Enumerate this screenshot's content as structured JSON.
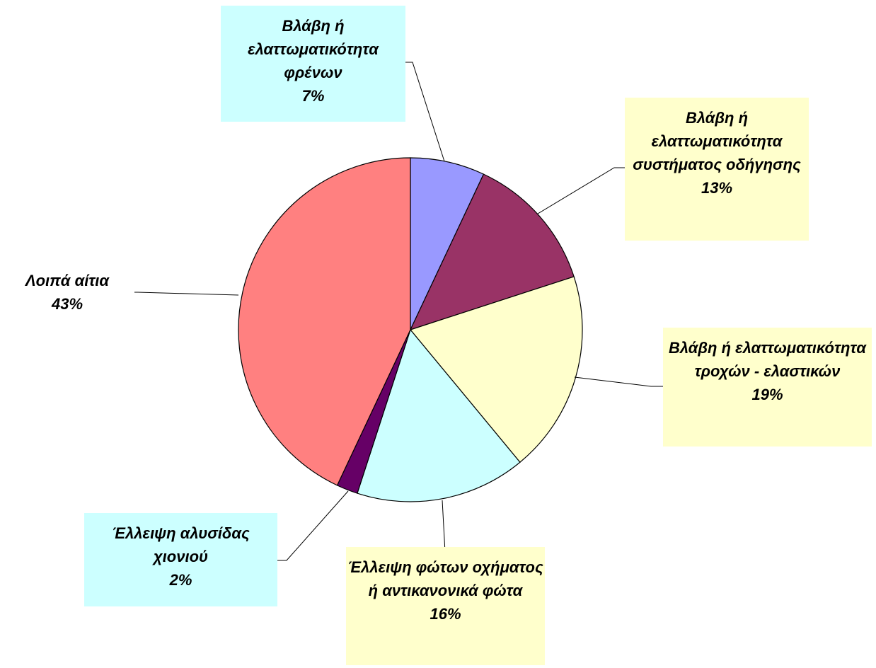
{
  "chart_data": {
    "type": "pie",
    "categories": [
      "Βλάβη ή ελαττωματικότητα φρένων",
      "Βλάβη ή ελαττωματικότητα συστήματος οδήγησης",
      "Βλάβη ή ελαττωματικότητα τροχών - ελαστικών",
      "Έλλειψη φώτων οχήματος ή αντικανονικά φώτα",
      "Έλλειψη αλυσίδας χιονιού",
      "Λοιπά αίτια"
    ],
    "values": [
      7,
      13,
      19,
      16,
      2,
      43
    ],
    "value_labels": [
      "7%",
      "13%",
      "19%",
      "16%",
      "2%",
      "43%"
    ],
    "colors": [
      "#9999ff",
      "#993366",
      "#ffffcc",
      "#ccffff",
      "#660066",
      "#ff8080"
    ],
    "label_backgrounds": [
      "#ccffff",
      "#ffffcc",
      "#ffffcc",
      "#ffffcc",
      "#ccffff",
      "#ffffff"
    ]
  }
}
